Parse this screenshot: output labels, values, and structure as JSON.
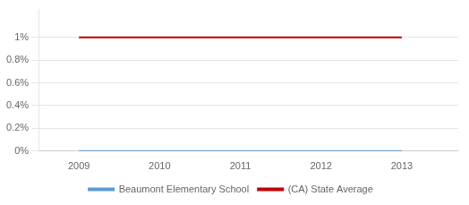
{
  "chart_data": {
    "type": "line",
    "x": [
      2009,
      2010,
      2011,
      2012,
      2013
    ],
    "series": [
      {
        "name": "(CA) State Average",
        "color": "#c00000",
        "values": [
          1.0,
          1.0,
          1.0,
          1.0,
          1.0
        ]
      },
      {
        "name": "Beaumont Elementary School",
        "color": "#5b9bd5",
        "values": [
          0.0,
          0.0,
          0.0,
          0.0,
          0.0
        ]
      }
    ],
    "xlim": [
      2008.5,
      2013.7
    ],
    "xticks": [
      2009,
      2010,
      2011,
      2012,
      2013
    ],
    "ylim": [
      0.0,
      1.25
    ],
    "yticks": [
      {
        "value": 0.0,
        "label": "0%"
      },
      {
        "value": 0.2,
        "label": "0.2%"
      },
      {
        "value": 0.4,
        "label": "0.4%"
      },
      {
        "value": 0.6,
        "label": "0.6%"
      },
      {
        "value": 0.8,
        "label": "0.8%"
      },
      {
        "value": 1.0,
        "label": "1%"
      }
    ],
    "grid": "y",
    "legend": "bottom"
  }
}
